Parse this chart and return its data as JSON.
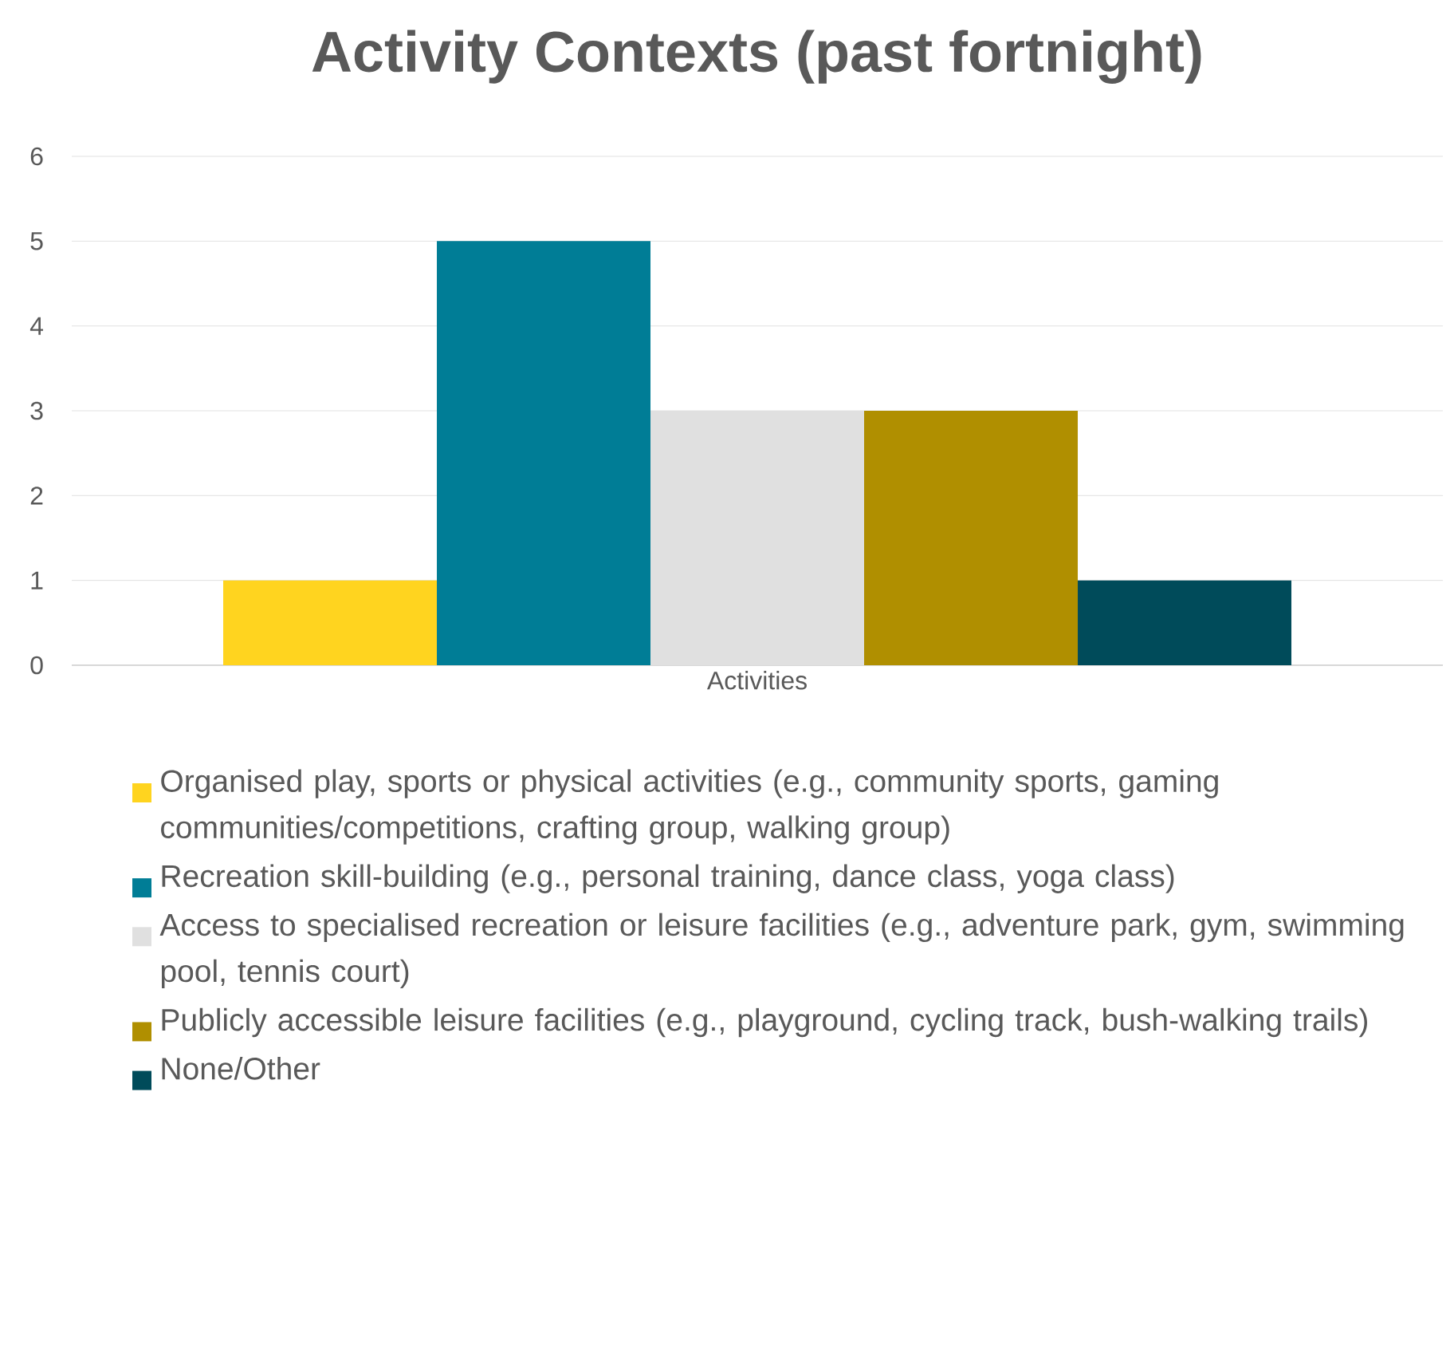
{
  "chart_data": {
    "type": "bar",
    "title": "Activity Contexts (past fortnight)",
    "categories": [
      "Activities"
    ],
    "series": [
      {
        "name": "Organised play, sports or physical activities (e.g., community sports, gaming communities/competitions, crafting group, walking group)",
        "color": "#ffd41f",
        "values": [
          1
        ]
      },
      {
        "name": "Recreation skill-building (e.g., personal training, dance class, yoga class)",
        "color": "#007d96",
        "values": [
          5
        ]
      },
      {
        "name": "Access to specialised recreation or leisure facilities (e.g., adventure park, gym, swimming pool, tennis court)",
        "color": "#e0e0e0",
        "values": [
          3
        ]
      },
      {
        "name": "Publicly accessible leisure facilities (e.g., playground, cycling track, bush-walking trails)",
        "color": "#b08f00",
        "values": [
          3
        ]
      },
      {
        "name": "None/Other",
        "color": "#004b5a",
        "values": [
          1
        ]
      }
    ],
    "ylim": [
      0,
      6
    ],
    "yticks": [
      0,
      1,
      2,
      3,
      4,
      5,
      6
    ],
    "grid": "y",
    "legend": "bottom"
  }
}
